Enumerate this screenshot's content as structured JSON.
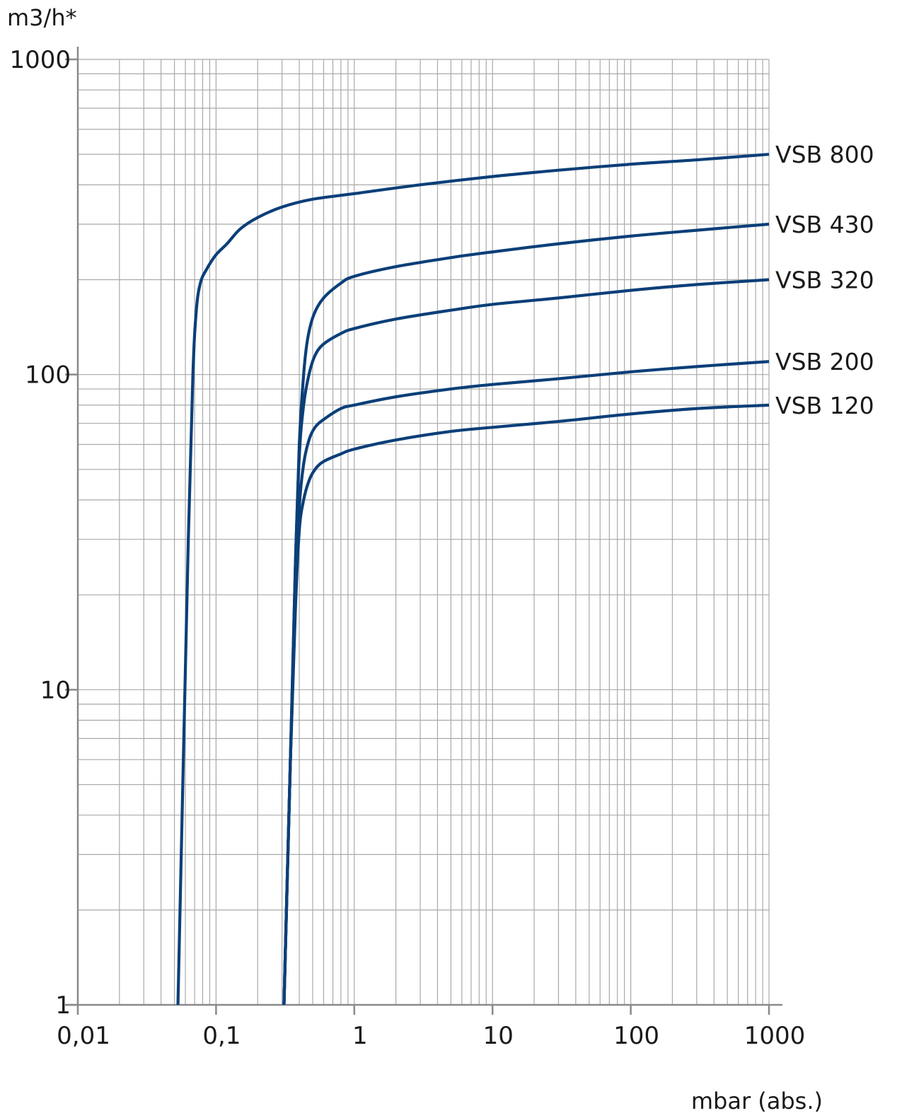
{
  "chart_data": {
    "type": "line",
    "xscale": "log",
    "yscale": "log",
    "xlim": [
      0.01,
      1000
    ],
    "ylim": [
      1,
      1000
    ],
    "grid": true,
    "ylabel": "m3/h*",
    "xlabel": "mbar (abs.)",
    "x_tick_labels": [
      "0,01",
      "0,1",
      "1",
      "10",
      "100",
      "1000"
    ],
    "y_tick_labels": [
      "1",
      "10",
      "100",
      "1000"
    ],
    "line_color": "#0b3f78",
    "series": [
      {
        "name": "VSB 800",
        "x": [
          0.053,
          0.058,
          0.063,
          0.068,
          0.072,
          0.077,
          0.085,
          0.1,
          0.12,
          0.15,
          0.2,
          0.3,
          0.5,
          1,
          3,
          10,
          30,
          100,
          300,
          1000
        ],
        "y": [
          1,
          6,
          30,
          100,
          160,
          195,
          215,
          240,
          260,
          290,
          315,
          340,
          360,
          375,
          400,
          425,
          445,
          465,
          480,
          500
        ]
      },
      {
        "name": "VSB 430",
        "x": [
          0.31,
          0.345,
          0.375,
          0.4,
          0.43,
          0.46,
          0.51,
          0.6,
          0.8,
          1,
          2,
          5,
          10,
          30,
          100,
          300,
          1000
        ],
        "y": [
          1,
          6,
          25,
          60,
          100,
          130,
          155,
          175,
          195,
          205,
          220,
          235,
          245,
          260,
          275,
          287,
          300
        ]
      },
      {
        "name": "VSB 320",
        "x": [
          0.31,
          0.345,
          0.375,
          0.4,
          0.43,
          0.47,
          0.52,
          0.6,
          0.8,
          1,
          2,
          5,
          10,
          30,
          100,
          300,
          1000
        ],
        "y": [
          1,
          6,
          25,
          55,
          80,
          100,
          115,
          125,
          135,
          140,
          150,
          160,
          167,
          175,
          185,
          193,
          200
        ]
      },
      {
        "name": "VSB 200",
        "x": [
          0.31,
          0.345,
          0.375,
          0.4,
          0.43,
          0.47,
          0.52,
          0.6,
          0.8,
          1,
          2,
          5,
          10,
          30,
          100,
          300,
          1000
        ],
        "y": [
          1,
          6,
          20,
          38,
          52,
          62,
          68,
          72,
          78,
          80,
          85,
          90,
          93,
          97,
          102,
          106,
          110
        ]
      },
      {
        "name": "VSB 120",
        "x": [
          0.31,
          0.345,
          0.375,
          0.4,
          0.43,
          0.47,
          0.52,
          0.6,
          0.8,
          1,
          2,
          5,
          10,
          30,
          100,
          300,
          1000
        ],
        "y": [
          1,
          6,
          18,
          32,
          40,
          46,
          50,
          53,
          56,
          58,
          62,
          66,
          68,
          71,
          75,
          78,
          80
        ]
      }
    ]
  }
}
